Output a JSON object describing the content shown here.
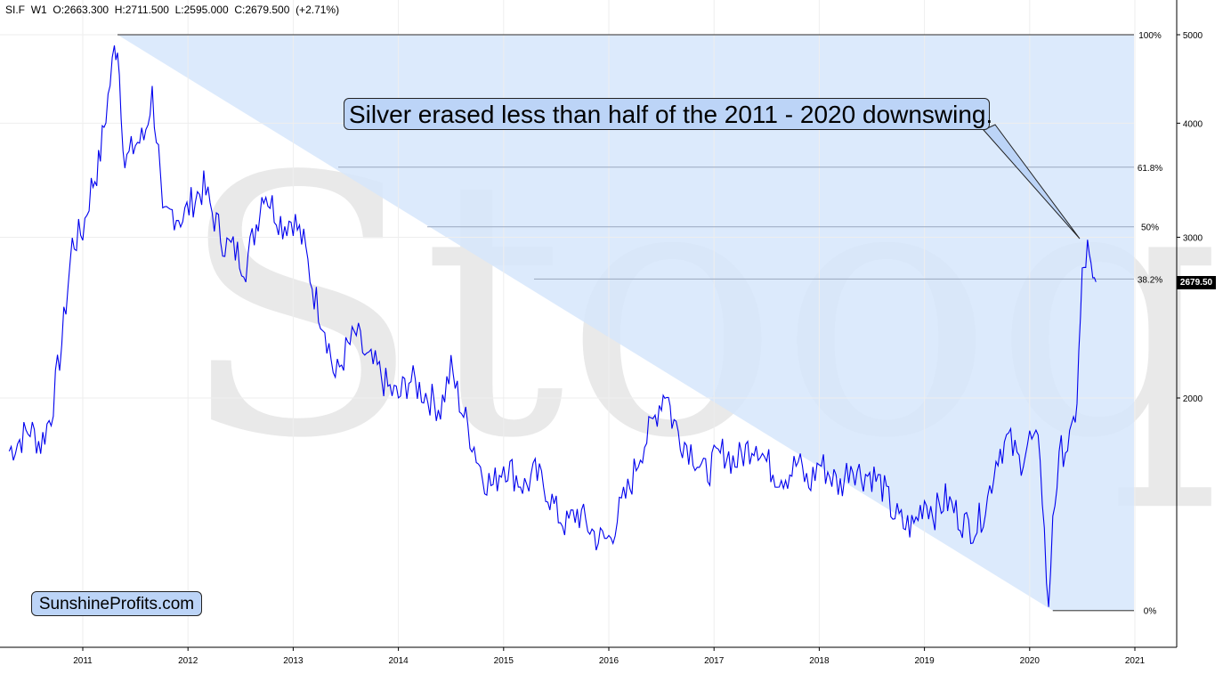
{
  "header": {
    "symbol": "SI.F",
    "interval": "W1",
    "open": "O:2663.300",
    "high": "H:2711.500",
    "low": "L:2595.000",
    "close": "C:2679.500",
    "change": "(+2.71%)"
  },
  "annotation": "Silver erased less than half of the 2011 - 2020 downswing.",
  "brand": "SunshineProfits.com",
  "watermark": "Stooq",
  "last_price_label": "2679.50",
  "colors": {
    "price": "#0000ee",
    "shade": "#d6e6fb",
    "callout": "#bcd4f7",
    "grid": "#eeeeee"
  },
  "chart_data": {
    "type": "line",
    "title": "",
    "xlabel": "",
    "ylabel": "",
    "scale": "log",
    "ylim": [
      1100,
      5500
    ],
    "xlim": [
      2010.3,
      2021.4
    ],
    "x_ticks": [
      "2011",
      "2012",
      "2013",
      "2014",
      "2015",
      "2016",
      "2017",
      "2018",
      "2019",
      "2020",
      "2021"
    ],
    "y_ticks": [
      2000,
      3000,
      4000,
      5000
    ],
    "fib_levels": [
      {
        "label": "100%",
        "value": 5000
      },
      {
        "label": "61.8%",
        "value": 3580
      },
      {
        "label": "50%",
        "value": 3080
      },
      {
        "label": "38.2%",
        "value": 2700
      },
      {
        "label": "0%",
        "value": 1170
      }
    ],
    "series": [
      {
        "x": [
          2010.3,
          2010.4,
          2010.5,
          2010.6,
          2010.7,
          2010.8,
          2010.9,
          2011.0,
          2011.08,
          2011.15,
          2011.22,
          2011.3,
          2011.33,
          2011.4,
          2011.5,
          2011.58,
          2011.66,
          2011.72,
          2011.76,
          2011.85,
          2011.95,
          2012.05,
          2012.15,
          2012.25,
          2012.35,
          2012.45,
          2012.55,
          2012.65,
          2012.72,
          2012.8,
          2012.9,
          2013.0,
          2013.1,
          2013.2,
          2013.3,
          2013.4,
          2013.5,
          2013.6,
          2013.7,
          2013.8,
          2013.9,
          2014.0,
          2014.1,
          2014.2,
          2014.3,
          2014.4,
          2014.5,
          2014.6,
          2014.7,
          2014.8,
          2014.9,
          2015.0,
          2015.1,
          2015.2,
          2015.3,
          2015.4,
          2015.5,
          2015.6,
          2015.7,
          2015.8,
          2015.9,
          2016.0,
          2016.1,
          2016.2,
          2016.3,
          2016.4,
          2016.5,
          2016.55,
          2016.6,
          2016.7,
          2016.8,
          2016.9,
          2017.0,
          2017.1,
          2017.2,
          2017.3,
          2017.4,
          2017.5,
          2017.6,
          2017.7,
          2017.8,
          2017.9,
          2018.0,
          2018.1,
          2018.2,
          2018.3,
          2018.4,
          2018.5,
          2018.6,
          2018.7,
          2018.8,
          2018.9,
          2019.0,
          2019.1,
          2019.2,
          2019.3,
          2019.4,
          2019.5,
          2019.6,
          2019.7,
          2019.8,
          2019.9,
          2020.0,
          2020.1,
          2020.18,
          2020.22,
          2020.3,
          2020.4,
          2020.45,
          2020.5,
          2020.55,
          2020.6,
          2020.63
        ],
        "y": [
          1750,
          1800,
          1850,
          1780,
          1920,
          2300,
          2950,
          3050,
          3400,
          3600,
          4100,
          4800,
          4900,
          3600,
          3800,
          3850,
          4300,
          3700,
          3100,
          3200,
          3150,
          3300,
          3400,
          3150,
          2950,
          2900,
          2800,
          3100,
          3400,
          3250,
          3100,
          3150,
          2950,
          2600,
          2400,
          2100,
          2250,
          2350,
          2200,
          2150,
          2050,
          2000,
          2100,
          2050,
          2000,
          1950,
          2150,
          1950,
          1800,
          1650,
          1600,
          1700,
          1650,
          1600,
          1650,
          1600,
          1500,
          1450,
          1500,
          1450,
          1400,
          1400,
          1500,
          1600,
          1750,
          1850,
          2000,
          2050,
          1900,
          1800,
          1750,
          1650,
          1700,
          1750,
          1700,
          1750,
          1800,
          1700,
          1650,
          1650,
          1700,
          1600,
          1700,
          1650,
          1600,
          1700,
          1650,
          1650,
          1600,
          1500,
          1450,
          1450,
          1550,
          1500,
          1550,
          1500,
          1450,
          1450,
          1550,
          1750,
          1800,
          1700,
          1800,
          1750,
          1150,
          1500,
          1750,
          1800,
          2000,
          2700,
          2900,
          2650,
          2680
        ]
      }
    ]
  }
}
